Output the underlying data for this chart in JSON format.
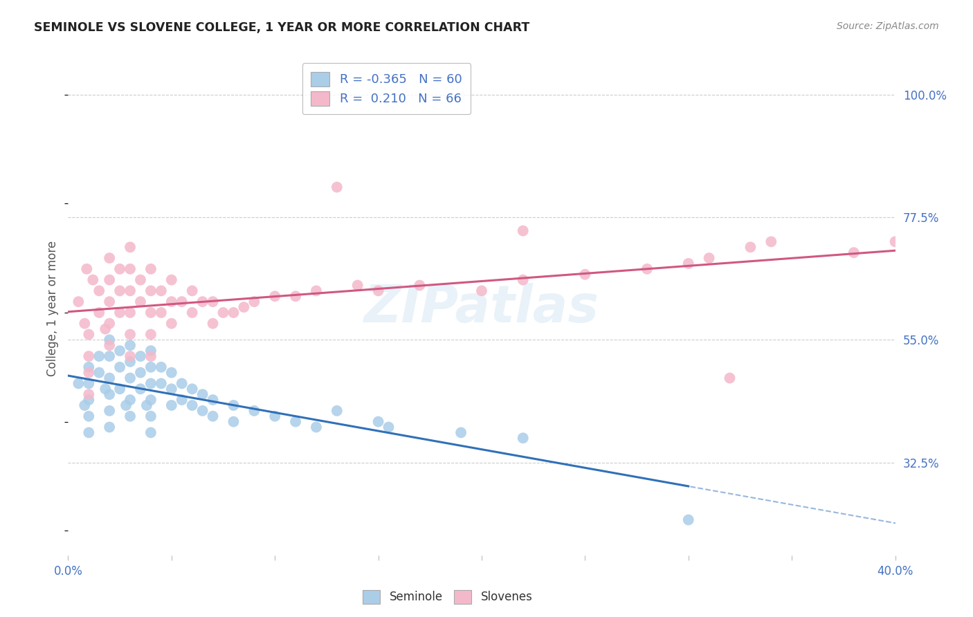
{
  "title": "SEMINOLE VS SLOVENE COLLEGE, 1 YEAR OR MORE CORRELATION CHART",
  "source": "Source: ZipAtlas.com",
  "ylabel": "College, 1 year or more",
  "ytick_labels": [
    "100.0%",
    "77.5%",
    "55.0%",
    "32.5%"
  ],
  "ytick_values": [
    1.0,
    0.775,
    0.55,
    0.325
  ],
  "xlim": [
    0.0,
    0.4
  ],
  "ylim": [
    0.155,
    1.06
  ],
  "watermark_text": "ZIPatlas",
  "legend_r_blue": "-0.365",
  "legend_n_blue": "60",
  "legend_r_pink": "0.210",
  "legend_n_pink": "66",
  "blue_scatter_color": "#aacde8",
  "pink_scatter_color": "#f4b8cb",
  "line_blue_color": "#3070b8",
  "line_pink_color": "#d05880",
  "blue_text_color": "#4472c4",
  "pink_text_color": "#d05880",
  "axis_label_color": "#4472c4",
  "seminole_x": [
    0.005,
    0.008,
    0.01,
    0.01,
    0.01,
    0.01,
    0.01,
    0.015,
    0.015,
    0.018,
    0.02,
    0.02,
    0.02,
    0.02,
    0.02,
    0.02,
    0.025,
    0.025,
    0.025,
    0.028,
    0.03,
    0.03,
    0.03,
    0.03,
    0.03,
    0.035,
    0.035,
    0.035,
    0.038,
    0.04,
    0.04,
    0.04,
    0.04,
    0.04,
    0.04,
    0.045,
    0.045,
    0.05,
    0.05,
    0.05,
    0.055,
    0.055,
    0.06,
    0.06,
    0.065,
    0.065,
    0.07,
    0.07,
    0.08,
    0.08,
    0.09,
    0.1,
    0.11,
    0.12,
    0.13,
    0.15,
    0.155,
    0.19,
    0.22,
    0.3
  ],
  "seminole_y": [
    0.47,
    0.43,
    0.5,
    0.47,
    0.44,
    0.41,
    0.38,
    0.52,
    0.49,
    0.46,
    0.55,
    0.52,
    0.48,
    0.45,
    0.42,
    0.39,
    0.53,
    0.5,
    0.46,
    0.43,
    0.54,
    0.51,
    0.48,
    0.44,
    0.41,
    0.52,
    0.49,
    0.46,
    0.43,
    0.53,
    0.5,
    0.47,
    0.44,
    0.41,
    0.38,
    0.5,
    0.47,
    0.49,
    0.46,
    0.43,
    0.47,
    0.44,
    0.46,
    0.43,
    0.45,
    0.42,
    0.44,
    0.41,
    0.43,
    0.4,
    0.42,
    0.41,
    0.4,
    0.39,
    0.42,
    0.4,
    0.39,
    0.38,
    0.37,
    0.22
  ],
  "slovene_x": [
    0.005,
    0.008,
    0.009,
    0.01,
    0.01,
    0.01,
    0.01,
    0.012,
    0.015,
    0.015,
    0.018,
    0.02,
    0.02,
    0.02,
    0.02,
    0.02,
    0.025,
    0.025,
    0.025,
    0.03,
    0.03,
    0.03,
    0.03,
    0.03,
    0.03,
    0.035,
    0.035,
    0.04,
    0.04,
    0.04,
    0.04,
    0.04,
    0.045,
    0.045,
    0.05,
    0.05,
    0.05,
    0.055,
    0.06,
    0.06,
    0.065,
    0.07,
    0.07,
    0.075,
    0.08,
    0.085,
    0.09,
    0.1,
    0.11,
    0.12,
    0.13,
    0.14,
    0.15,
    0.17,
    0.2,
    0.22,
    0.22,
    0.25,
    0.28,
    0.3,
    0.31,
    0.32,
    0.33,
    0.34,
    0.38,
    0.4
  ],
  "slovene_y": [
    0.62,
    0.58,
    0.68,
    0.56,
    0.52,
    0.49,
    0.45,
    0.66,
    0.64,
    0.6,
    0.57,
    0.7,
    0.66,
    0.62,
    0.58,
    0.54,
    0.68,
    0.64,
    0.6,
    0.72,
    0.68,
    0.64,
    0.6,
    0.56,
    0.52,
    0.66,
    0.62,
    0.68,
    0.64,
    0.6,
    0.56,
    0.52,
    0.64,
    0.6,
    0.66,
    0.62,
    0.58,
    0.62,
    0.64,
    0.6,
    0.62,
    0.62,
    0.58,
    0.6,
    0.6,
    0.61,
    0.62,
    0.63,
    0.63,
    0.64,
    0.83,
    0.65,
    0.64,
    0.65,
    0.64,
    0.75,
    0.66,
    0.67,
    0.68,
    0.69,
    0.7,
    0.48,
    0.72,
    0.73,
    0.71,
    0.73
  ]
}
